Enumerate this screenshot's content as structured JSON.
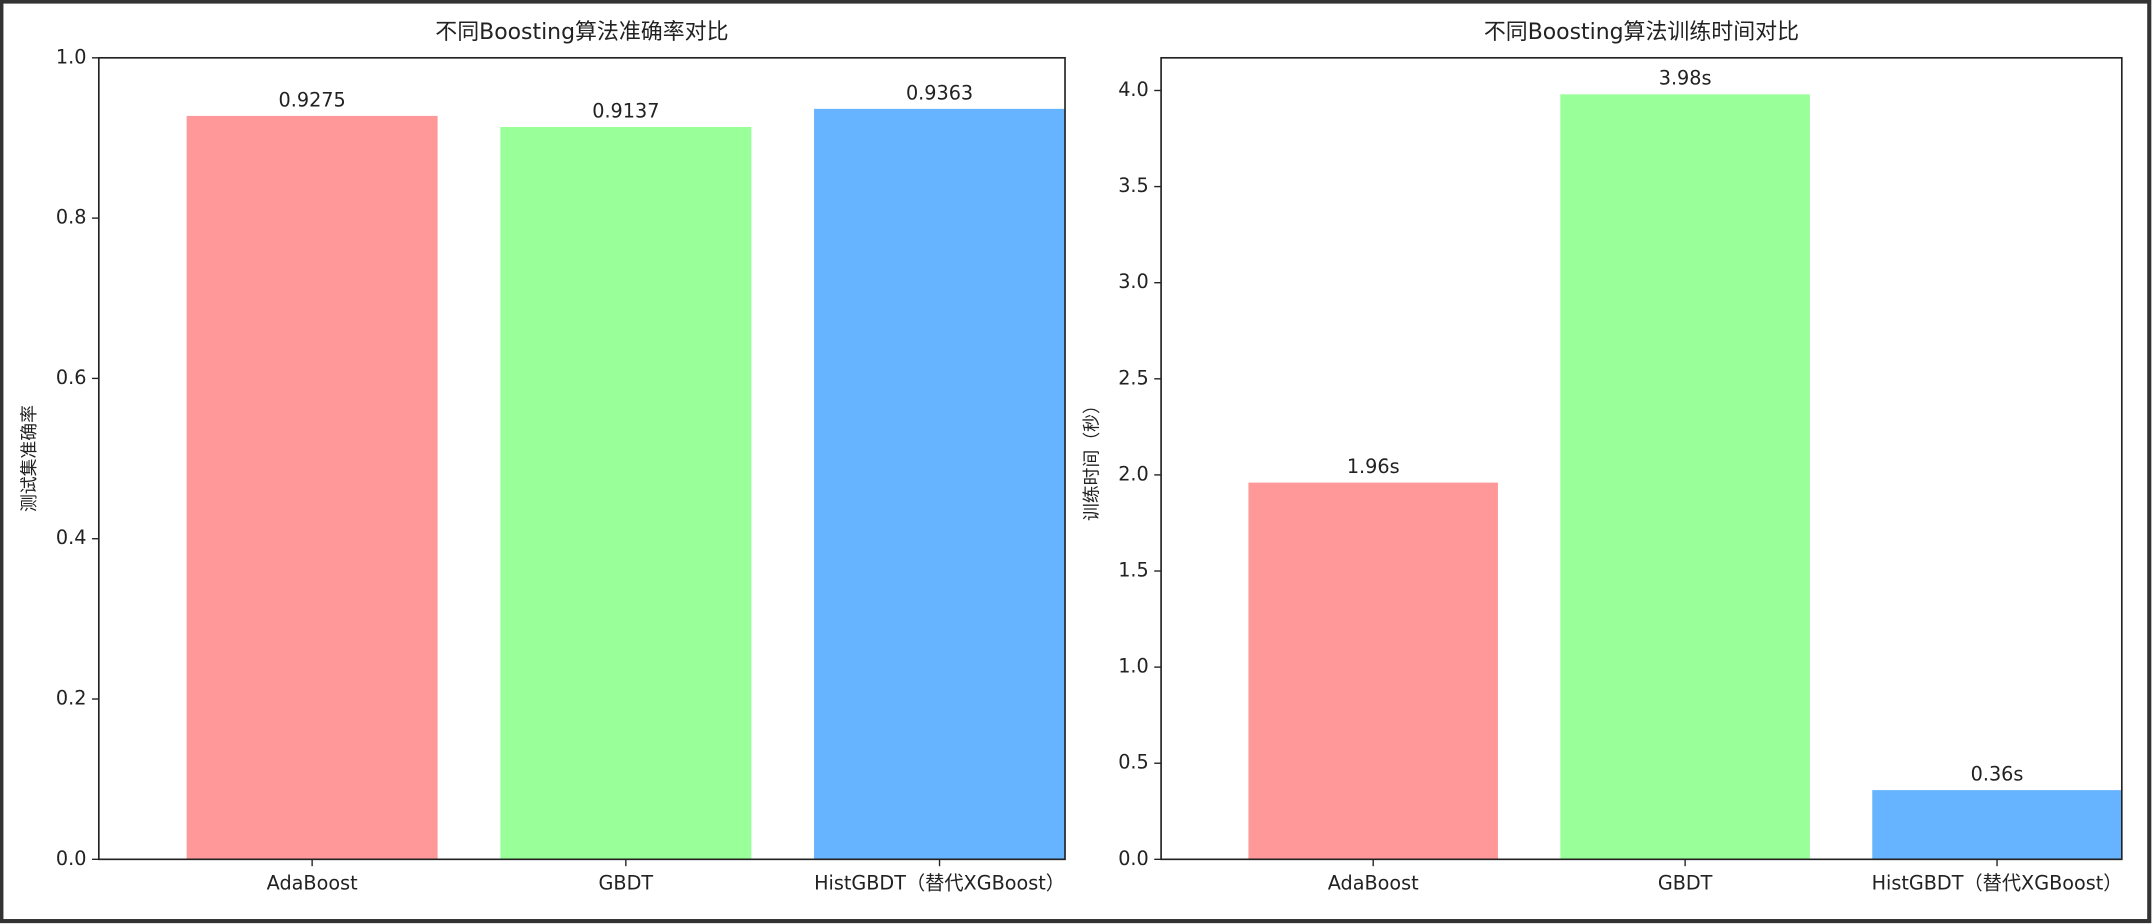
{
  "chart_data": [
    {
      "type": "bar",
      "title": "不同Boosting算法准确率对比",
      "ylabel": "测试集准确率",
      "categories": [
        "AdaBoost",
        "GBDT",
        "HistGBDT（替代XGBoost）"
      ],
      "values": [
        0.9275,
        0.9137,
        0.9363
      ],
      "colors": [
        "#ff9999",
        "#99ff99",
        "#66b3ff"
      ],
      "ylim": [
        0,
        1.0
      ],
      "yticks": [
        {
          "value": 0,
          "label": "0.0"
        },
        0.2,
        0.4,
        0.6,
        0.8,
        {
          "value": 1,
          "label": "1.0"
        }
      ]
    },
    {
      "type": "bar",
      "title": "不同Boosting算法训练时间对比",
      "ylabel": "训练时间（秒）",
      "categories": [
        "AdaBoost",
        "GBDT",
        "HistGBDT（替代XGBoost）"
      ],
      "values": [
        1.96,
        3.98,
        0.36
      ],
      "value_labels": [
        "1.96s",
        "3.98s",
        "0.36s"
      ],
      "colors": [
        "#ff9999",
        "#99ff99",
        "#66b3ff"
      ],
      "ylim": [
        0,
        4.17
      ],
      "yticks": [
        {
          "value": 0,
          "label": "0.0"
        },
        0.5,
        {
          "value": 1,
          "label": "1.0"
        },
        1.5,
        {
          "value": 2,
          "label": "2.0"
        },
        2.5,
        {
          "value": 3,
          "label": "3.0"
        },
        3.5,
        {
          "value": 4,
          "label": "4.0"
        }
      ]
    }
  ]
}
